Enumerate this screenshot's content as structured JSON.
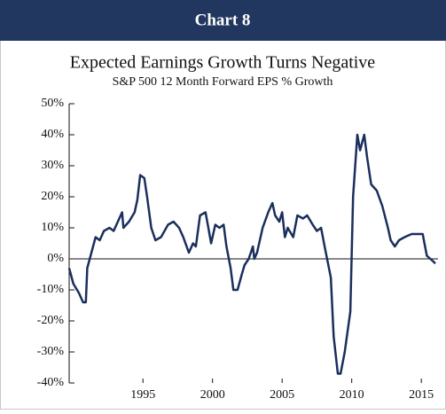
{
  "chart_data": {
    "type": "line",
    "header": "Chart 8",
    "title": "Expected Earnings Growth Turns Negative",
    "subtitle": "S&P 500 12 Month Forward EPS % Growth",
    "x": [
      1989.7,
      1990.0,
      1990.4,
      1990.7,
      1990.9,
      1991.0,
      1991.3,
      1991.6,
      1991.9,
      1992.2,
      1992.6,
      1992.9,
      1993.2,
      1993.5,
      1993.6,
      1994.0,
      1994.4,
      1994.6,
      1994.8,
      1995.1,
      1995.3,
      1995.6,
      1995.9,
      1996.3,
      1996.8,
      1997.2,
      1997.6,
      1997.9,
      1998.3,
      1998.6,
      1998.8,
      1999.1,
      1999.5,
      1999.7,
      1999.9,
      2000.2,
      2000.5,
      2000.8,
      2001.0,
      2001.3,
      2001.5,
      2001.8,
      2002.1,
      2002.3,
      2002.6,
      2002.9,
      2003.0,
      2003.2,
      2003.6,
      2004.0,
      2004.3,
      2004.5,
      2004.8,
      2005.0,
      2005.2,
      2005.4,
      2005.8,
      2006.1,
      2006.5,
      2006.8,
      2007.2,
      2007.5,
      2007.8,
      2008.1,
      2008.5,
      2008.7,
      2009.0,
      2009.2,
      2009.5,
      2009.9,
      2010.1,
      2010.4,
      2010.6,
      2010.9,
      2011.1,
      2011.4,
      2011.8,
      2012.2,
      2012.6,
      2012.8,
      2013.1,
      2013.4,
      2013.8,
      2014.3,
      2014.7,
      2015.1,
      2015.4,
      2015.9,
      2016.0
    ],
    "series": [
      {
        "name": "S&P 500 12 Month Forward EPS % Growth",
        "color": "#1b2f5c",
        "values": [
          -3,
          -8,
          -11,
          -14,
          -14,
          -3,
          2,
          7,
          6,
          9,
          10,
          9,
          12,
          15,
          10,
          12,
          15,
          19,
          27,
          26,
          20,
          10,
          6,
          7,
          11,
          12,
          10,
          7,
          2,
          5,
          4,
          14,
          15,
          10,
          5,
          11,
          10,
          11,
          4,
          -3,
          -10,
          -10,
          -5,
          -2,
          0,
          4,
          0,
          2,
          10,
          15,
          18,
          14,
          12,
          15,
          7,
          10,
          7,
          14,
          13,
          14,
          11,
          9,
          10,
          3,
          -6,
          -25,
          -37,
          -37,
          -30,
          -17,
          20,
          40,
          35,
          40,
          33,
          24,
          22,
          17,
          10,
          6,
          4,
          6,
          7,
          8,
          8,
          8,
          1,
          -1,
          -1.5
        ]
      }
    ],
    "xlim": [
      1989.7,
      2016.2
    ],
    "xticks": [
      1995,
      2000,
      2005,
      2010,
      2015
    ],
    "ylim": [
      -40,
      50
    ],
    "yticks": [
      {
        "value": -40,
        "label": "-40%"
      },
      {
        "value": -30,
        "label": "-30%"
      },
      {
        "value": -20,
        "label": "-20%"
      },
      {
        "value": -10,
        "label": "-10%"
      },
      {
        "value": 0,
        "label": "0%"
      },
      {
        "value": 10,
        "label": "10%"
      },
      {
        "value": 20,
        "label": "20%"
      },
      {
        "value": 30,
        "label": "30%"
      },
      {
        "value": 40,
        "label": "40%"
      },
      {
        "value": 50,
        "label": "50%"
      }
    ]
  }
}
